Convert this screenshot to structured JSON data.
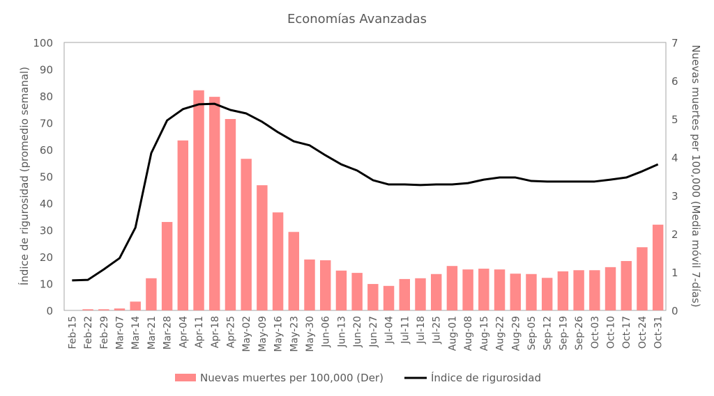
{
  "chart_data": {
    "type": "bar+line",
    "title": "Economías Avanzadas",
    "ylabel_left": "Índice de rigurosidad (promedio semanal)",
    "ylabel_right": "Nuevas muertes per 100,000 (Media móvil 7-días)",
    "ylim_left": [
      0,
      100
    ],
    "ylim_right": [
      0,
      7
    ],
    "yticks_left": [
      "0",
      "10",
      "20",
      "30",
      "40",
      "50",
      "60",
      "70",
      "80",
      "90",
      "100"
    ],
    "yticks_right": [
      "0",
      "1",
      "2",
      "3",
      "4",
      "5",
      "6",
      "7"
    ],
    "grid": false,
    "legend_position": "bottom",
    "categories": [
      "Feb-15",
      "Feb-22",
      "Feb-29",
      "Mar-07",
      "Mar-14",
      "Mar-21",
      "Mar-28",
      "Apr-04",
      "Apr-11",
      "Apr-18",
      "Apr-25",
      "May-02",
      "May-09",
      "May-16",
      "May-23",
      "May-30",
      "Jun-06",
      "Jun-13",
      "Jun-20",
      "Jun-27",
      "Jul-04",
      "Jul-11",
      "Jul-18",
      "Jul-25",
      "Aug-01",
      "Aug-08",
      "Aug-15",
      "Aug-22",
      "Aug-29",
      "Sep-05",
      "Sep-12",
      "Sep-19",
      "Sep-26",
      "Oct-03",
      "Oct-10",
      "Oct-17",
      "Oct-24",
      "Oct-31"
    ],
    "series": [
      {
        "name": "Nuevas muertes per 100,000 (Der)",
        "type": "bar",
        "axis": "right",
        "color": "#FF8A8A",
        "values": [
          0,
          0.03,
          0.03,
          0.05,
          0.23,
          0.84,
          2.31,
          4.44,
          5.75,
          5.58,
          5.0,
          3.96,
          3.27,
          2.56,
          2.05,
          1.33,
          1.31,
          1.04,
          0.98,
          0.69,
          0.64,
          0.82,
          0.84,
          0.95,
          1.16,
          1.07,
          1.09,
          1.07,
          0.96,
          0.95,
          0.85,
          1.02,
          1.05,
          1.05,
          1.13,
          1.29,
          1.65,
          2.24
        ]
      },
      {
        "name": "Índice de rigurosidad",
        "type": "line",
        "axis": "left",
        "color": "#000000",
        "values": [
          11.2,
          11.4,
          15.3,
          19.5,
          30.9,
          58.7,
          70.9,
          75.1,
          76.9,
          77.1,
          74.8,
          73.5,
          70.4,
          66.5,
          63.1,
          61.6,
          57.9,
          54.5,
          52.2,
          48.6,
          47.0,
          47.0,
          46.8,
          47.0,
          47.0,
          47.5,
          48.8,
          49.6,
          49.6,
          48.3,
          48.1,
          48.1,
          48.1,
          48.1,
          48.8,
          49.6,
          51.9,
          54.5
        ]
      }
    ]
  }
}
